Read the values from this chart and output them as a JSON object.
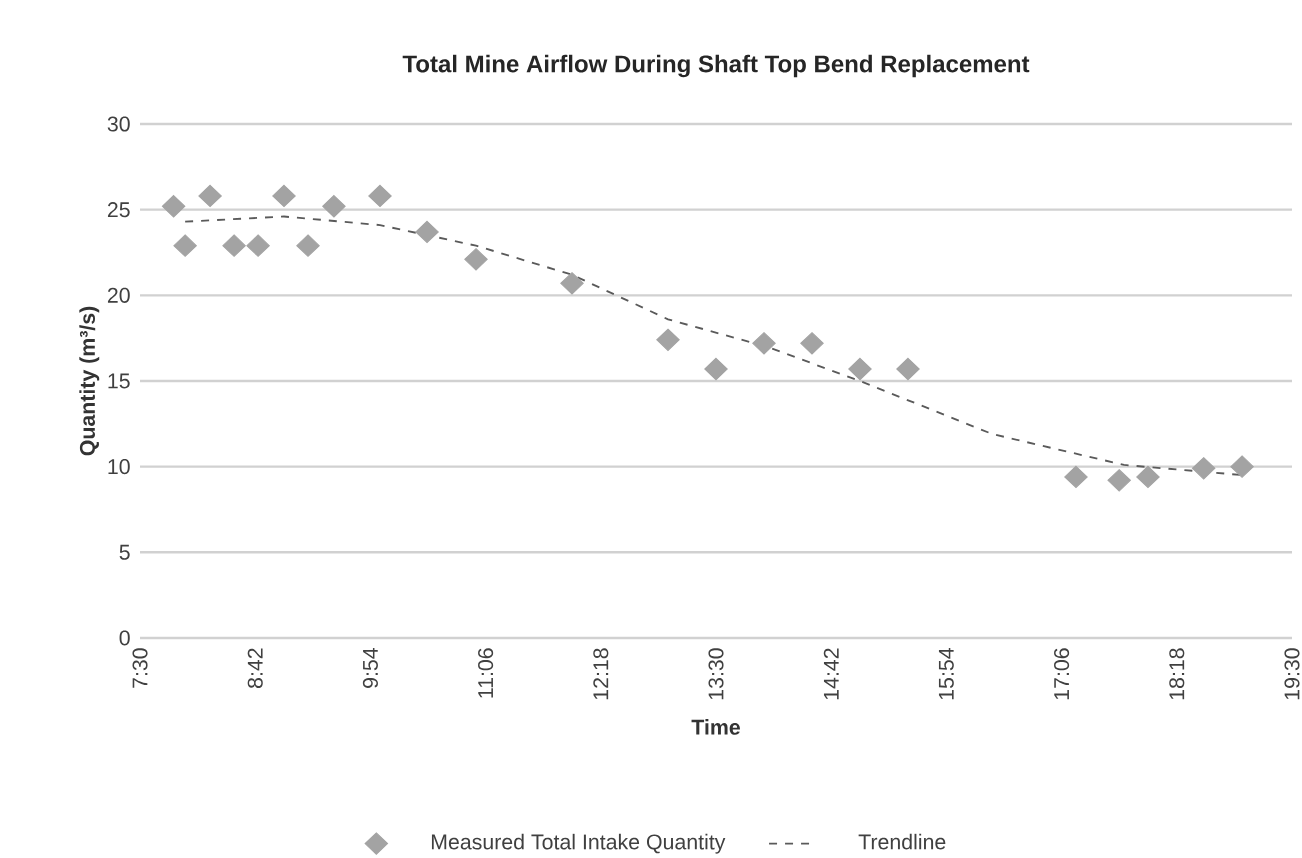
{
  "chart_data": {
    "type": "scatter",
    "title": "Total Mine Airflow During Shaft Top Bend Replacement",
    "xlabel": "Time",
    "ylabel": "Quantity (m³/s)",
    "xlim": [
      7.5,
      19.5
    ],
    "xticks": [
      {
        "value": 7.5,
        "label": "7:30"
      },
      {
        "value": 8.7,
        "label": "8:42"
      },
      {
        "value": 9.9,
        "label": "9:54"
      },
      {
        "value": 11.1,
        "label": "11:06"
      },
      {
        "value": 12.3,
        "label": "12:18"
      },
      {
        "value": 13.5,
        "label": "13:30"
      },
      {
        "value": 14.7,
        "label": "14:42"
      },
      {
        "value": 15.9,
        "label": "15:54"
      },
      {
        "value": 17.1,
        "label": "17:06"
      },
      {
        "value": 18.3,
        "label": "18:18"
      },
      {
        "value": 19.5,
        "label": "19:30"
      }
    ],
    "ylim": [
      0,
      30
    ],
    "yticks": [
      0,
      5,
      10,
      15,
      20,
      25,
      30
    ],
    "grid": "y",
    "legend": "bottom",
    "series": [
      {
        "name": "Measured Total Intake Quantity",
        "marker": "diamond",
        "color": "#a3a3a3",
        "x": [
          7.85,
          7.97,
          8.23,
          8.48,
          8.73,
          9.0,
          9.25,
          9.52,
          10.0,
          10.49,
          11.0,
          12.0,
          13.0,
          13.5,
          14.0,
          14.5,
          15.0,
          15.5,
          17.25,
          17.7,
          18.0,
          18.58,
          18.98
        ],
        "values": [
          25.2,
          22.9,
          25.8,
          22.9,
          22.9,
          25.8,
          22.9,
          25.2,
          25.8,
          23.7,
          22.1,
          20.7,
          17.4,
          15.7,
          17.2,
          17.2,
          15.7,
          15.7,
          9.4,
          9.2,
          9.4,
          9.9,
          10.0
        ]
      },
      {
        "name": "Trendline",
        "type": "line",
        "marker": "none",
        "line_style": "dashed",
        "color": "#5a5a5a",
        "x": [
          7.97,
          9.0,
          10.0,
          11.0,
          12.0,
          13.0,
          14.03,
          15.0,
          16.38,
          17.75,
          19.0
        ],
        "values": [
          24.3,
          24.6,
          24.1,
          22.9,
          21.2,
          18.6,
          17.0,
          15.0,
          11.9,
          10.1,
          9.5
        ]
      }
    ]
  }
}
